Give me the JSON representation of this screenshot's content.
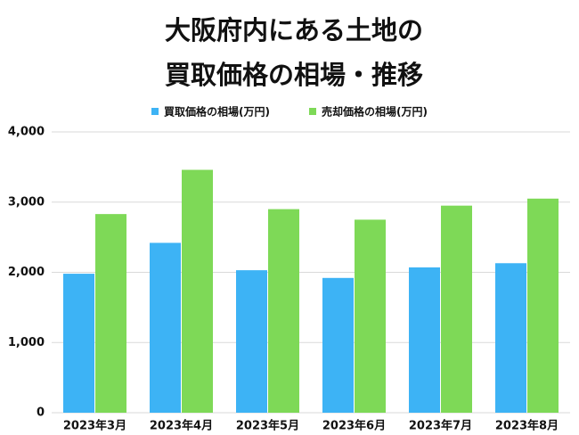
{
  "chart_data": {
    "type": "bar",
    "title": [
      "大阪府内にある土地の",
      "買取価格の相場・推移"
    ],
    "categories": [
      "2023年3月",
      "2023年4月",
      "2023年5月",
      "2023年6月",
      "2023年7月",
      "2023年8月"
    ],
    "series": [
      {
        "name": "買取価格の相場(万円)",
        "color": "#3db3f5",
        "values": [
          1980,
          2420,
          2030,
          1920,
          2070,
          2130
        ]
      },
      {
        "name": "売却価格の相場(万円)",
        "color": "#7ed957",
        "values": [
          2830,
          3460,
          2900,
          2750,
          2950,
          3050
        ]
      }
    ],
    "ylim": [
      0,
      4000
    ],
    "yticks": [
      0,
      {
        "value": 1000,
        "label": "1,000"
      },
      {
        "value": 2000,
        "label": "2,000"
      },
      {
        "value": 3000,
        "label": "3,000"
      },
      {
        "value": 4000,
        "label": "4,000"
      }
    ],
    "grid": true,
    "legend": "top"
  }
}
